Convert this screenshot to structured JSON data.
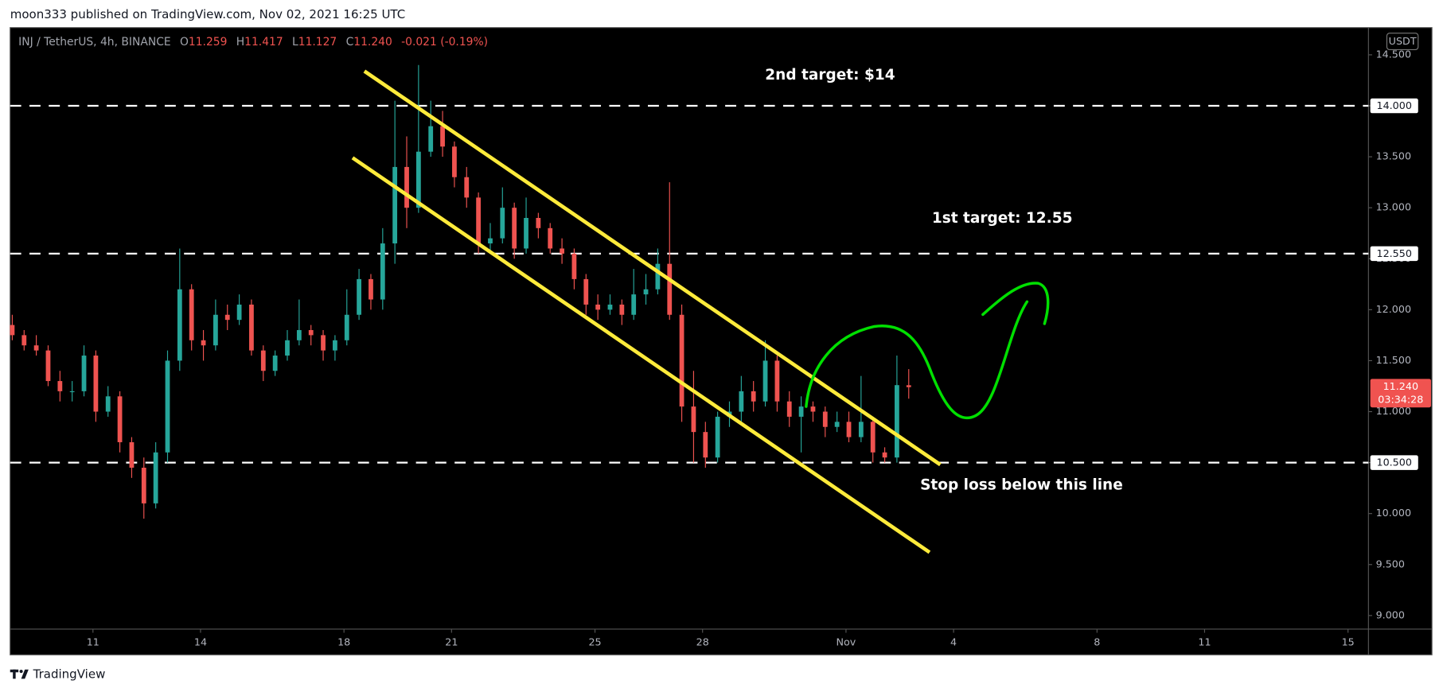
{
  "header": {
    "publisher": "moon333 published on TradingView.com, Nov 02, 2021 16:25 UTC"
  },
  "footer": {
    "brand": "TradingView"
  },
  "chart_data": {
    "type": "candlestick",
    "symbol_info": {
      "symbol": "INJ / TetherUS, 4h, BINANCE",
      "fields": [
        {
          "key": "O",
          "value": "11.259"
        },
        {
          "key": "H",
          "value": "11.417"
        },
        {
          "key": "L",
          "value": "11.127"
        },
        {
          "key": "C",
          "value": "11.240"
        }
      ],
      "change": "-0.021 (-0.19%)"
    },
    "currency": "USDT",
    "xlim": [
      8.69,
      46.57
    ],
    "ylim": [
      8.867,
      14.767
    ],
    "xticks": [
      11,
      14,
      18,
      21,
      25,
      28,
      {
        "value": 32,
        "label": "Nov"
      },
      {
        "value": 35,
        "label": "4"
      },
      {
        "value": 39,
        "label": "8"
      },
      {
        "value": 42,
        "label": "11"
      },
      {
        "value": 46,
        "label": "15"
      }
    ],
    "yticks": [
      {
        "value": 14.5,
        "label": "14.500"
      },
      {
        "value": 14,
        "label": "14.000"
      },
      {
        "value": 13.5,
        "label": "13.500"
      },
      {
        "value": 13,
        "label": "13.000"
      },
      {
        "value": 12.5,
        "label": "12.500"
      },
      {
        "value": 12,
        "label": "12.000"
      },
      {
        "value": 11.5,
        "label": "11.500"
      },
      {
        "value": 11,
        "label": "11.000"
      },
      {
        "value": 10.5,
        "label": "10.500"
      },
      {
        "value": 10,
        "label": "10.000"
      },
      {
        "value": 9.5,
        "label": "9.500"
      },
      {
        "value": 9,
        "label": "9.000"
      }
    ],
    "grid": false,
    "up_color": "#26a69a",
    "down_color": "#ef5350",
    "x": [
      8.75,
      9.08,
      9.42,
      9.75,
      10.08,
      10.42,
      10.75,
      11.08,
      11.42,
      11.75,
      12.08,
      12.42,
      12.75,
      13.08,
      13.42,
      13.75,
      14.08,
      14.42,
      14.75,
      15.08,
      15.42,
      15.75,
      16.08,
      16.42,
      16.75,
      17.08,
      17.42,
      17.75,
      18.08,
      18.42,
      18.75,
      19.08,
      19.42,
      19.75,
      20.08,
      20.42,
      20.75,
      21.08,
      21.42,
      21.75,
      22.08,
      22.42,
      22.75,
      23.08,
      23.42,
      23.75,
      24.08,
      24.42,
      24.75,
      25.08,
      25.42,
      25.75,
      26.08,
      26.42,
      26.75,
      27.08,
      27.42,
      27.75,
      28.08,
      28.42,
      28.75,
      29.08,
      29.42,
      29.75,
      30.08,
      30.42,
      30.75,
      31.08,
      31.42,
      31.75,
      32.08,
      32.42,
      32.75,
      33.08,
      33.42,
      33.75
    ],
    "candles": [
      [
        11.85,
        11.95,
        11.7,
        11.75
      ],
      [
        11.75,
        11.8,
        11.6,
        11.65
      ],
      [
        11.65,
        11.75,
        11.55,
        11.6
      ],
      [
        11.6,
        11.65,
        11.25,
        11.3
      ],
      [
        11.3,
        11.4,
        11.1,
        11.2
      ],
      [
        11.2,
        11.3,
        11.1,
        11.2
      ],
      [
        11.2,
        11.65,
        11.15,
        11.55
      ],
      [
        11.55,
        11.6,
        10.9,
        11.0
      ],
      [
        11.0,
        11.25,
        10.95,
        11.15
      ],
      [
        11.15,
        11.2,
        10.6,
        10.7
      ],
      [
        10.7,
        10.75,
        10.35,
        10.45
      ],
      [
        10.45,
        10.55,
        9.95,
        10.1
      ],
      [
        10.1,
        10.7,
        10.05,
        10.6
      ],
      [
        10.6,
        11.6,
        10.5,
        11.5
      ],
      [
        11.5,
        12.6,
        11.4,
        12.2
      ],
      [
        12.2,
        12.25,
        11.6,
        11.7
      ],
      [
        11.7,
        11.8,
        11.5,
        11.65
      ],
      [
        11.65,
        12.1,
        11.6,
        11.95
      ],
      [
        11.95,
        12.05,
        11.8,
        11.9
      ],
      [
        11.9,
        12.15,
        11.85,
        12.05
      ],
      [
        12.05,
        12.1,
        11.55,
        11.6
      ],
      [
        11.6,
        11.65,
        11.3,
        11.4
      ],
      [
        11.4,
        11.6,
        11.35,
        11.55
      ],
      [
        11.55,
        11.8,
        11.5,
        11.7
      ],
      [
        11.7,
        12.1,
        11.65,
        11.8
      ],
      [
        11.8,
        11.85,
        11.65,
        11.75
      ],
      [
        11.75,
        11.8,
        11.5,
        11.6
      ],
      [
        11.6,
        11.75,
        11.5,
        11.7
      ],
      [
        11.7,
        12.2,
        11.65,
        11.95
      ],
      [
        11.95,
        12.4,
        11.9,
        12.3
      ],
      [
        12.3,
        12.35,
        12.0,
        12.1
      ],
      [
        12.1,
        12.8,
        12.0,
        12.65
      ],
      [
        12.65,
        14.05,
        12.45,
        13.4
      ],
      [
        13.4,
        13.7,
        12.8,
        13.0
      ],
      [
        13.0,
        14.4,
        12.95,
        13.55
      ],
      [
        13.55,
        14.05,
        13.5,
        13.8
      ],
      [
        13.8,
        13.95,
        13.5,
        13.6
      ],
      [
        13.6,
        13.65,
        13.2,
        13.3
      ],
      [
        13.3,
        13.4,
        13.0,
        13.1
      ],
      [
        13.1,
        13.15,
        12.55,
        12.65
      ],
      [
        12.65,
        12.85,
        12.55,
        12.7
      ],
      [
        12.7,
        13.2,
        12.65,
        13.0
      ],
      [
        13.0,
        13.05,
        12.5,
        12.6
      ],
      [
        12.6,
        13.1,
        12.55,
        12.9
      ],
      [
        12.9,
        12.95,
        12.7,
        12.8
      ],
      [
        12.8,
        12.85,
        12.55,
        12.6
      ],
      [
        12.6,
        12.7,
        12.45,
        12.55
      ],
      [
        12.55,
        12.6,
        12.2,
        12.3
      ],
      [
        12.3,
        12.35,
        11.95,
        12.05
      ],
      [
        12.05,
        12.15,
        11.9,
        12.0
      ],
      [
        12.0,
        12.15,
        11.95,
        12.05
      ],
      [
        12.05,
        12.1,
        11.85,
        11.95
      ],
      [
        11.95,
        12.4,
        11.9,
        12.15
      ],
      [
        12.15,
        12.35,
        12.05,
        12.2
      ],
      [
        12.2,
        12.6,
        12.15,
        12.45
      ],
      [
        12.45,
        13.25,
        11.9,
        11.95
      ],
      [
        11.95,
        12.05,
        10.9,
        11.05
      ],
      [
        11.05,
        11.4,
        10.5,
        10.8
      ],
      [
        10.8,
        10.9,
        10.45,
        10.55
      ],
      [
        10.55,
        11.0,
        10.5,
        10.95
      ],
      [
        10.95,
        11.1,
        10.85,
        11.0
      ],
      [
        11.0,
        11.35,
        10.9,
        11.2
      ],
      [
        11.2,
        11.3,
        11.0,
        11.1
      ],
      [
        11.1,
        11.7,
        11.05,
        11.5
      ],
      [
        11.5,
        11.55,
        11.0,
        11.1
      ],
      [
        11.1,
        11.2,
        10.85,
        10.95
      ],
      [
        10.95,
        11.15,
        10.6,
        11.05
      ],
      [
        11.05,
        11.1,
        10.9,
        11.0
      ],
      [
        11.0,
        11.05,
        10.75,
        10.85
      ],
      [
        10.85,
        11.0,
        10.8,
        10.9
      ],
      [
        10.9,
        11.0,
        10.7,
        10.75
      ],
      [
        10.75,
        11.35,
        10.7,
        10.9
      ],
      [
        10.9,
        10.95,
        10.5,
        10.6
      ],
      [
        10.6,
        10.65,
        10.5,
        10.55
      ],
      [
        10.55,
        11.55,
        10.5,
        11.26
      ],
      [
        11.259,
        11.417,
        11.127,
        11.24
      ]
    ],
    "hlines": {
      "values": [
        14,
        12.55,
        10.5
      ],
      "value_labels": [
        "14.000",
        "12.550",
        "10.500"
      ],
      "color": "#ffffff"
    },
    "trendlines": [
      {
        "points": [
          [
            18.57,
            14.34
          ],
          [
            34.63,
            10.48
          ]
        ],
        "color": "#ffeb3b"
      },
      {
        "points": [
          [
            18.24,
            13.49
          ],
          [
            34.33,
            9.62
          ]
        ],
        "color": "#ffeb3b"
      }
    ],
    "last_price": {
      "value": 11.24,
      "label": "11.240",
      "countdown": "03:34:28",
      "color": "#f05350"
    },
    "annotations": [
      "2nd target: $14",
      "1st target: 12.55",
      "Stop loss below this line"
    ]
  }
}
